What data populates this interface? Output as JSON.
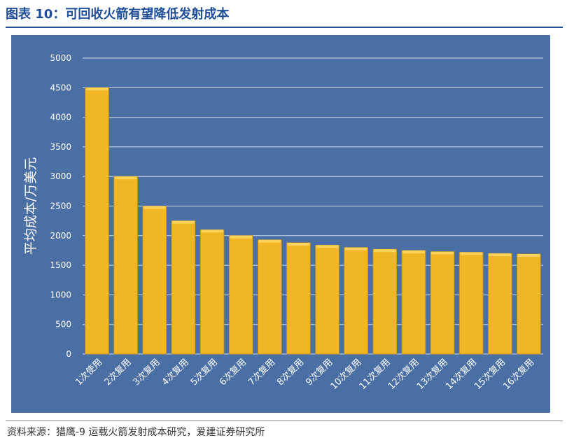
{
  "page": {
    "title": "图表 10：可回收火箭有望降低发射成本",
    "source": "资料来源：猎鹰-9 运载火箭发射成本研究，爱建证券研究所"
  },
  "colors": {
    "title": "#1f4e96",
    "panel_bg": "#4a6fa5",
    "bar_fill": "#f0b626",
    "bar_highlight": "#fbd35c",
    "grid": "#ffffff",
    "axis_text": "#ffffff"
  },
  "chart_data": {
    "type": "bar",
    "title": "",
    "xlabel": "",
    "ylabel": "平均成本/万美元",
    "ylim": [
      0,
      5000
    ],
    "yticks": [
      0,
      500,
      1000,
      1500,
      2000,
      2500,
      3000,
      3500,
      4000,
      4500,
      5000
    ],
    "grid": true,
    "categories": [
      "1次使用",
      "2次复用",
      "3次复用",
      "4次复用",
      "5次复用",
      "6次复用",
      "7次复用",
      "8次复用",
      "9次复用",
      "10次复用",
      "11次复用",
      "12次复用",
      "13次复用",
      "14次复用",
      "15次复用",
      "16次复用"
    ],
    "values": [
      4500,
      3000,
      2500,
      2250,
      2100,
      2000,
      1930,
      1880,
      1840,
      1800,
      1770,
      1750,
      1730,
      1720,
      1700,
      1690
    ]
  }
}
